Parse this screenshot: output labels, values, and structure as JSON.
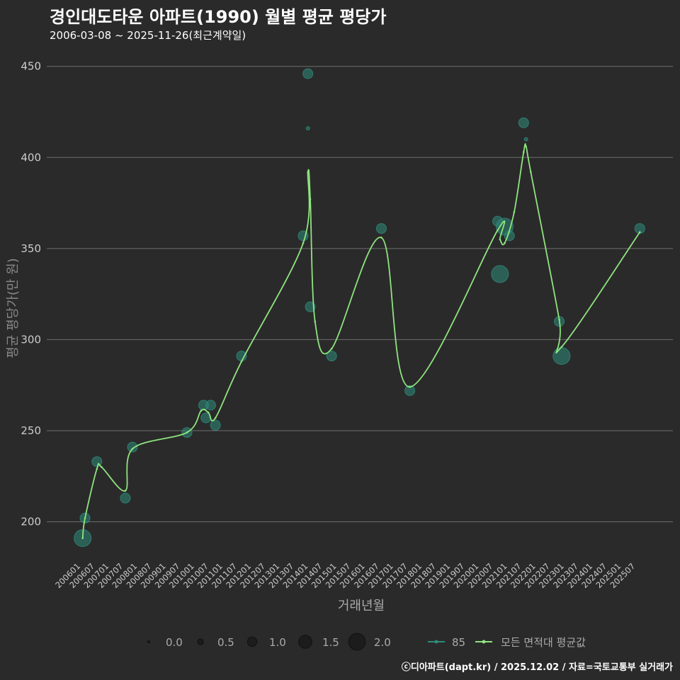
{
  "header": {
    "title": "경인대도타운 아파트(1990) 월별 평균 평당가",
    "subtitle": "2006-03-08 ~ 2025-11-26(최근계약일)"
  },
  "caption": "ⓒ디아파트(dapt.kr) / 2025.12.02 / 자료=국토교통부 실거래가",
  "colors": {
    "background": "#2b2a2b",
    "grid": "#6e6e6e",
    "series_85": "#2e8b7a",
    "avg_line": "#8ee57e",
    "text": "#cccccc"
  },
  "chart_data": {
    "type": "line",
    "xlabel": "거래년월",
    "ylabel": "평균 평당가(만 원)",
    "ylim": [
      180,
      460
    ],
    "yticks": [
      200,
      250,
      300,
      350,
      400,
      450
    ],
    "x_start": "200601",
    "x_end": "202512",
    "xticks": [
      "200601",
      "200607",
      "200701",
      "200707",
      "200801",
      "200807",
      "200901",
      "200907",
      "201001",
      "201007",
      "201101",
      "201107",
      "201201",
      "201207",
      "201301",
      "201307",
      "201401",
      "201407",
      "201501",
      "201507",
      "201601",
      "201607",
      "201701",
      "201707",
      "201801",
      "201807",
      "201901",
      "201907",
      "202001",
      "202007",
      "202101",
      "202107",
      "202201",
      "202207",
      "202301",
      "202307",
      "202401",
      "202407",
      "202501",
      "202507"
    ],
    "size_legend": {
      "values": [
        "0.0",
        "0.5",
        "1.0",
        "1.5",
        "2.0"
      ]
    },
    "series_legend": {
      "series_85": "85",
      "avg": "모든 면적대 평균값"
    },
    "points_85": [
      {
        "x": "200603",
        "y": 191,
        "s": 2.0
      },
      {
        "x": "200604",
        "y": 202,
        "s": 1.0
      },
      {
        "x": "200609",
        "y": 233,
        "s": 1.0
      },
      {
        "x": "200709",
        "y": 213,
        "s": 1.0
      },
      {
        "x": "200712",
        "y": 241,
        "s": 1.0
      },
      {
        "x": "200911",
        "y": 249,
        "s": 1.0
      },
      {
        "x": "201006",
        "y": 264,
        "s": 1.0
      },
      {
        "x": "201007",
        "y": 257,
        "s": 1.0
      },
      {
        "x": "201009",
        "y": 264,
        "s": 1.0
      },
      {
        "x": "201011",
        "y": 253,
        "s": 1.0
      },
      {
        "x": "201110",
        "y": 291,
        "s": 1.0
      },
      {
        "x": "201312",
        "y": 357,
        "s": 1.0
      },
      {
        "x": "201402",
        "y": 446,
        "s": 1.0
      },
      {
        "x": "201402",
        "y": 416,
        "s": 0.1
      },
      {
        "x": "201403",
        "y": 318,
        "s": 1.0
      },
      {
        "x": "201412",
        "y": 291,
        "s": 1.0
      },
      {
        "x": "201609",
        "y": 361,
        "s": 1.0
      },
      {
        "x": "201709",
        "y": 272,
        "s": 1.0
      },
      {
        "x": "202010",
        "y": 365,
        "s": 1.0
      },
      {
        "x": "202011",
        "y": 336,
        "s": 2.0
      },
      {
        "x": "202101",
        "y": 362,
        "s": 2.0
      },
      {
        "x": "202103",
        "y": 357,
        "s": 1.0
      },
      {
        "x": "202109",
        "y": 419,
        "s": 1.0
      },
      {
        "x": "202110",
        "y": 410,
        "s": 0.1
      },
      {
        "x": "202212",
        "y": 310,
        "s": 1.0
      },
      {
        "x": "202301",
        "y": 291,
        "s": 2.0
      },
      {
        "x": "202510",
        "y": 361,
        "s": 1.0
      }
    ],
    "avg_line": [
      {
        "x": "200603",
        "y": 191
      },
      {
        "x": "200604",
        "y": 202
      },
      {
        "x": "200609",
        "y": 229
      },
      {
        "x": "200611",
        "y": 230
      },
      {
        "x": "200709",
        "y": 217
      },
      {
        "x": "200712",
        "y": 240
      },
      {
        "x": "200911",
        "y": 249
      },
      {
        "x": "201005",
        "y": 261
      },
      {
        "x": "201008",
        "y": 260
      },
      {
        "x": "201011",
        "y": 257
      },
      {
        "x": "201110",
        "y": 288
      },
      {
        "x": "201312",
        "y": 353
      },
      {
        "x": "201402",
        "y": 392
      },
      {
        "x": "201403",
        "y": 377
      },
      {
        "x": "201405",
        "y": 310
      },
      {
        "x": "201412",
        "y": 295
      },
      {
        "x": "201609",
        "y": 356
      },
      {
        "x": "201709",
        "y": 274
      },
      {
        "x": "202010",
        "y": 360
      },
      {
        "x": "202011",
        "y": 355
      },
      {
        "x": "202101",
        "y": 353
      },
      {
        "x": "202105",
        "y": 370
      },
      {
        "x": "202109",
        "y": 403
      },
      {
        "x": "202110",
        "y": 406
      },
      {
        "x": "202112",
        "y": 392
      },
      {
        "x": "202212",
        "y": 311
      },
      {
        "x": "202301",
        "y": 296
      },
      {
        "x": "202510",
        "y": 359
      }
    ]
  }
}
